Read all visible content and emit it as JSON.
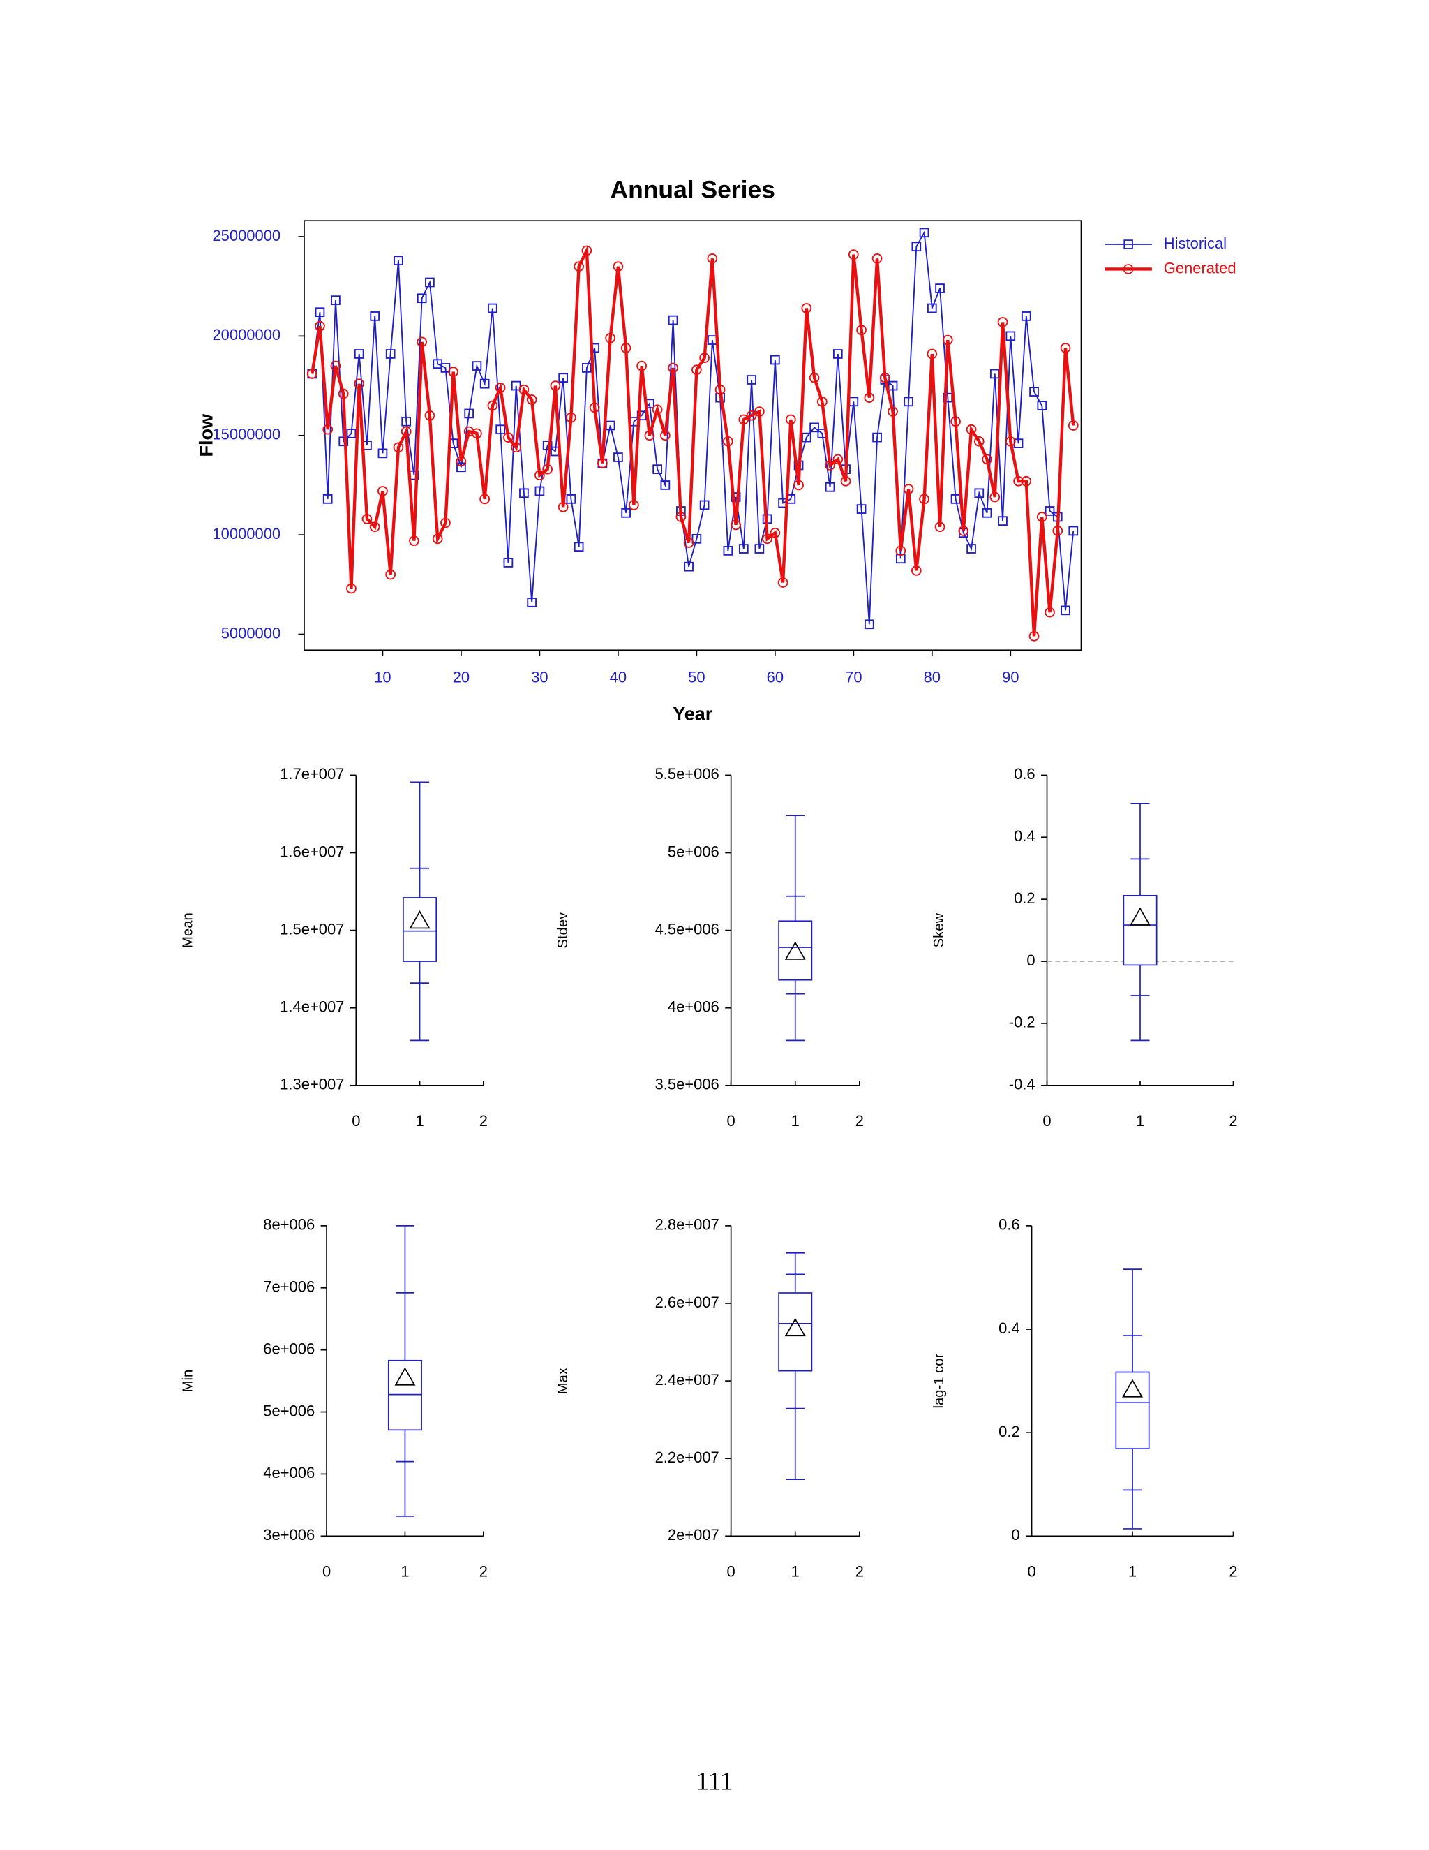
{
  "page_number": "111",
  "chart_data": [
    {
      "type": "line",
      "title": "Annual Series",
      "xlabel": "Year",
      "ylabel": "Flow",
      "xlim": [
        0,
        99
      ],
      "xticks": [
        10,
        20,
        30,
        40,
        50,
        60,
        70,
        80,
        90
      ],
      "ylim": [
        4200000,
        25800000
      ],
      "yticks": [
        5000000,
        10000000,
        15000000,
        20000000,
        25000000
      ],
      "legend": "right",
      "x": [
        1,
        2,
        3,
        4,
        5,
        6,
        7,
        8,
        9,
        10,
        11,
        12,
        13,
        14,
        15,
        16,
        17,
        18,
        19,
        20,
        21,
        22,
        23,
        24,
        25,
        26,
        27,
        28,
        29,
        30,
        31,
        32,
        33,
        34,
        35,
        36,
        37,
        38,
        39,
        40,
        41,
        42,
        43,
        44,
        45,
        46,
        47,
        48,
        49,
        50,
        51,
        52,
        53,
        54,
        55,
        56,
        57,
        58,
        59,
        60,
        61,
        62,
        63,
        64,
        65,
        66,
        67,
        68,
        69,
        70,
        71,
        72,
        73,
        74,
        75,
        76,
        77,
        78,
        79,
        80,
        81,
        82,
        83,
        84,
        85,
        86,
        87,
        88,
        89,
        90,
        91,
        92,
        93,
        94,
        95,
        96,
        97,
        98
      ],
      "series": [
        {
          "name": "Historical",
          "color": "#1f1fc8",
          "marker": "square",
          "values": [
            18100000,
            21200000,
            11800000,
            21800000,
            14700000,
            15100000,
            19100000,
            14500000,
            21000000,
            14100000,
            19100000,
            23800000,
            15700000,
            13000000,
            21900000,
            22700000,
            18600000,
            18400000,
            14600000,
            13400000,
            16100000,
            18500000,
            17600000,
            21400000,
            15300000,
            8600000,
            17500000,
            12100000,
            6600000,
            12200000,
            14500000,
            14200000,
            17900000,
            11800000,
            9400000,
            18400000,
            19400000,
            13600000,
            15500000,
            13900000,
            11100000,
            15700000,
            16000000,
            16600000,
            13300000,
            12500000,
            20800000,
            11200000,
            8400000,
            9800000,
            11500000,
            19800000,
            16900000,
            9200000,
            11900000,
            9300000,
            17800000,
            9300000,
            10800000,
            18800000,
            11600000,
            11800000,
            13500000,
            14900000,
            15400000,
            15100000,
            12400000,
            19100000,
            13300000,
            16700000,
            11300000,
            5500000,
            14900000,
            17800000,
            17500000,
            8800000,
            16700000,
            24500000,
            25200000,
            21400000,
            22400000,
            16900000,
            11800000,
            10100000,
            9300000,
            12100000,
            11100000,
            18100000,
            10700000,
            20000000,
            14600000,
            21000000,
            17200000,
            16500000,
            11200000,
            10900000,
            6200000,
            10200000
          ]
        },
        {
          "name": "Generated",
          "color": "#e81010",
          "marker": "circle",
          "values": [
            18100000,
            20500000,
            15300000,
            18500000,
            17100000,
            7300000,
            17600000,
            10800000,
            10400000,
            12200000,
            8000000,
            14400000,
            15200000,
            9700000,
            19700000,
            16000000,
            9800000,
            10600000,
            18200000,
            13700000,
            15200000,
            15100000,
            11800000,
            16500000,
            17400000,
            14900000,
            14400000,
            17300000,
            16800000,
            13000000,
            13300000,
            17500000,
            11400000,
            15900000,
            23500000,
            24300000,
            16400000,
            13600000,
            19900000,
            23500000,
            19400000,
            11500000,
            18500000,
            15000000,
            16300000,
            15000000,
            18400000,
            10900000,
            9600000,
            18300000,
            18900000,
            23900000,
            17300000,
            14700000,
            10500000,
            15800000,
            16000000,
            16200000,
            9800000,
            10100000,
            7600000,
            15800000,
            12500000,
            21400000,
            17900000,
            16700000,
            13500000,
            13800000,
            12700000,
            24100000,
            20300000,
            16900000,
            23900000,
            17900000,
            16200000,
            9200000,
            12300000,
            8200000,
            11800000,
            19100000,
            10400000,
            19800000,
            15700000,
            10200000,
            15300000,
            14700000,
            13800000,
            11900000,
            20700000,
            14700000,
            12700000,
            12700000,
            4900000,
            10900000,
            6100000,
            10200000,
            19400000,
            15500000
          ]
        }
      ]
    },
    {
      "type": "box",
      "ylabel": "Mean",
      "color": "#1f1fc8",
      "xlim": [
        0,
        2
      ],
      "xticks": [
        0,
        1,
        2
      ],
      "x": 1,
      "ylim": [
        13000000,
        17000000
      ],
      "yticks": [
        {
          "value": 13000000,
          "label": "1.3e+007"
        },
        {
          "value": 14000000,
          "label": "1.4e+007"
        },
        {
          "value": 15000000,
          "label": "1.5e+007"
        },
        {
          "value": 16000000,
          "label": "1.6e+007"
        },
        {
          "value": 17000000,
          "label": "1.7e+007"
        }
      ],
      "box": {
        "whisker_low": 13580000,
        "lower_tick": 14320000,
        "q1": 14600000,
        "median": 14990000,
        "q3": 15420000,
        "upper_tick": 15800000,
        "whisker_high": 16910000,
        "mean": 15120000
      }
    },
    {
      "type": "box",
      "ylabel": "Stdev",
      "color": "#1f1fc8",
      "xlim": [
        0,
        2
      ],
      "xticks": [
        0,
        1,
        2
      ],
      "x": 1,
      "ylim": [
        3500000,
        5500000
      ],
      "yticks": [
        {
          "value": 3500000,
          "label": "3.5e+006"
        },
        {
          "value": 4000000,
          "label": "4e+006"
        },
        {
          "value": 4500000,
          "label": "4.5e+006"
        },
        {
          "value": 5000000,
          "label": "5e+006"
        },
        {
          "value": 5500000,
          "label": "5.5e+006"
        }
      ],
      "box": {
        "whisker_low": 3790000,
        "lower_tick": 4090000,
        "q1": 4180000,
        "median": 4390000,
        "q3": 4560000,
        "upper_tick": 4720000,
        "whisker_high": 5240000,
        "mean": 4360000
      }
    },
    {
      "type": "box",
      "ylabel": "Skew",
      "color": "#1f1fc8",
      "xlim": [
        0,
        2
      ],
      "xticks": [
        0,
        1,
        2
      ],
      "x": 1,
      "ylim": [
        -0.4,
        0.6
      ],
      "yticks": [
        -0.4,
        -0.2,
        0,
        0.2,
        0.4,
        0.6
      ],
      "zero_line": true,
      "box": {
        "whisker_low": -0.255,
        "lower_tick": -0.11,
        "q1": -0.012,
        "median": 0.117,
        "q3": 0.212,
        "upper_tick": 0.33,
        "whisker_high": 0.509,
        "mean": 0.14
      }
    },
    {
      "type": "box",
      "ylabel": "Min",
      "color": "#1f1fc8",
      "xlim": [
        0,
        2
      ],
      "xticks": [
        0,
        1,
        2
      ],
      "x": 1,
      "ylim": [
        3000000,
        8000000
      ],
      "yticks": [
        {
          "value": 3000000,
          "label": "3e+006"
        },
        {
          "value": 4000000,
          "label": "4e+006"
        },
        {
          "value": 5000000,
          "label": "5e+006"
        },
        {
          "value": 6000000,
          "label": "6e+006"
        },
        {
          "value": 7000000,
          "label": "7e+006"
        },
        {
          "value": 8000000,
          "label": "8e+006"
        }
      ],
      "box": {
        "whisker_low": 3320000,
        "lower_tick": 4200000,
        "q1": 4710000,
        "median": 5280000,
        "q3": 5830000,
        "upper_tick": 6920000,
        "whisker_high": 8000000,
        "mean": 5550000
      }
    },
    {
      "type": "box",
      "ylabel": "Max",
      "color": "#1f1fc8",
      "xlim": [
        0,
        2
      ],
      "xticks": [
        0,
        1,
        2
      ],
      "x": 1,
      "ylim": [
        20000000,
        28000000
      ],
      "yticks": [
        {
          "value": 20000000,
          "label": "2e+007"
        },
        {
          "value": 22000000,
          "label": "2.2e+007"
        },
        {
          "value": 24000000,
          "label": "2.4e+007"
        },
        {
          "value": 26000000,
          "label": "2.6e+007"
        },
        {
          "value": 28000000,
          "label": "2.8e+007"
        }
      ],
      "box": {
        "whisker_low": 21460000,
        "lower_tick": 23290000,
        "q1": 24260000,
        "median": 25480000,
        "q3": 26270000,
        "upper_tick": 26750000,
        "whisker_high": 27300000,
        "mean": 25350000
      }
    },
    {
      "type": "box",
      "ylabel": "lag-1 cor",
      "color": "#1f1fc8",
      "xlim": [
        0,
        2
      ],
      "xticks": [
        0,
        1,
        2
      ],
      "x": 1,
      "ylim": [
        0,
        0.6
      ],
      "yticks": [
        0,
        0.2,
        0.4,
        0.6
      ],
      "box": {
        "whisker_low": 0.014,
        "lower_tick": 0.089,
        "q1": 0.169,
        "median": 0.258,
        "q3": 0.317,
        "upper_tick": 0.388,
        "whisker_high": 0.516,
        "mean": 0.283
      }
    }
  ]
}
